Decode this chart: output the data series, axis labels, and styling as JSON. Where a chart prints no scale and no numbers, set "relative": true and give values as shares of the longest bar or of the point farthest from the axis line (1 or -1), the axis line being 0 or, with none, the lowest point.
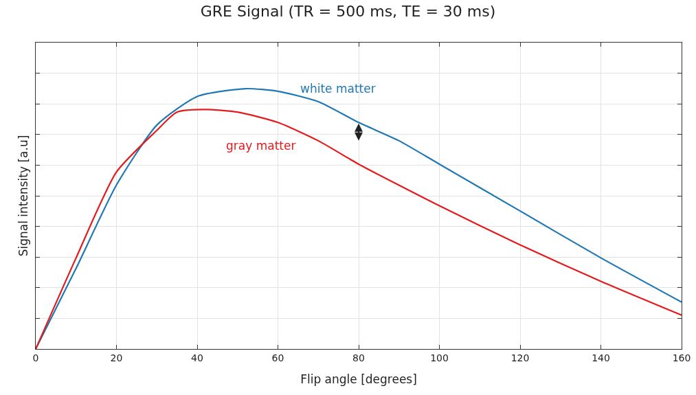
{
  "chart_data": {
    "type": "line",
    "title": "GRE Signal (TR = 500 ms, TE = 30 ms)",
    "xlabel": "Flip angle [degrees]",
    "ylabel": "Signal intensity [a.u]",
    "relative": true,
    "xlim": [
      0,
      160
    ],
    "xticks": [
      0,
      20,
      40,
      60,
      80,
      100,
      120,
      140,
      160
    ],
    "grid": true,
    "legend": false,
    "marker": "none",
    "line_style": "solid",
    "series": [
      {
        "name": "white matter",
        "color": "#1f77b4",
        "x": [
          0,
          10,
          20,
          30,
          40,
          52,
          60,
          70,
          80,
          90,
          100,
          120,
          140,
          160
        ],
        "values": [
          0,
          0.31,
          0.63,
          0.86,
          0.97,
          1,
          0.99,
          0.95,
          0.87,
          0.8,
          0.71,
          0.53,
          0.35,
          0.18
        ]
      },
      {
        "name": "gray matter",
        "color": "#e41a1c",
        "x": [
          0,
          10,
          20,
          30,
          35,
          42,
          50,
          60,
          70,
          80,
          100,
          120,
          140,
          160
        ],
        "values": [
          0,
          0.35,
          0.68,
          0.84,
          0.91,
          0.92,
          0.91,
          0.87,
          0.8,
          0.71,
          0.55,
          0.4,
          0.26,
          0.13
        ]
      }
    ]
  }
}
